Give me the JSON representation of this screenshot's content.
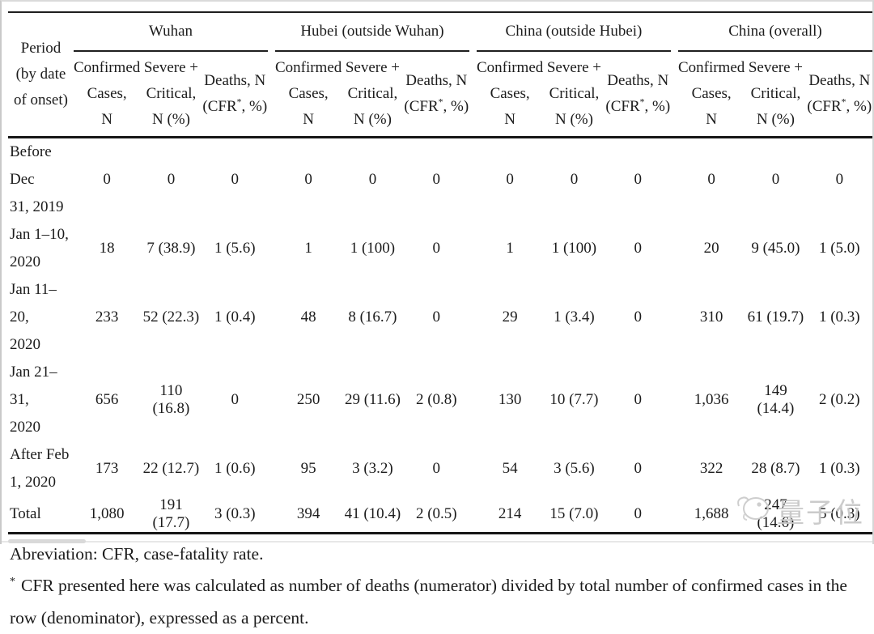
{
  "table": {
    "period_header_lines": [
      "Period",
      "(by date",
      "of onset)"
    ],
    "groups": [
      {
        "label": "Wuhan"
      },
      {
        "label": "Hubei (outside Wuhan)"
      },
      {
        "label": "China (outside Hubei)"
      },
      {
        "label": "China (overall)"
      }
    ],
    "subcolumns": [
      {
        "name": "confirmed-cases",
        "lines": [
          [
            {
              "t": "Confirmed"
            }
          ],
          [
            {
              "t": "Cases,"
            }
          ],
          [
            {
              "t": "N"
            }
          ]
        ]
      },
      {
        "name": "severe-critical",
        "lines": [
          [
            {
              "t": "Severe +"
            }
          ],
          [
            {
              "t": "Critical,"
            }
          ],
          [
            {
              "t": "N (%)"
            }
          ]
        ]
      },
      {
        "name": "deaths-cfr",
        "lines": [
          [
            {
              "t": "Deaths, N"
            }
          ],
          [
            {
              "t": "(CFR"
            },
            {
              "sup": "*"
            },
            {
              "t": ", %)"
            }
          ]
        ]
      }
    ],
    "rows": [
      {
        "period_lines": [
          "Before Dec",
          "31, 2019"
        ],
        "values": [
          "0",
          "0",
          "0",
          "0",
          "0",
          "0",
          "0",
          "0",
          "0",
          "0",
          "0",
          "0"
        ]
      },
      {
        "period_lines": [
          "Jan 1–10,",
          "2020"
        ],
        "values": [
          "18",
          "7 (38.9)",
          "1 (5.6)",
          "1",
          "1 (100)",
          "0",
          "1",
          "1 (100)",
          "0",
          "20",
          "9 (45.0)",
          "1 (5.0)"
        ]
      },
      {
        "period_lines": [
          "Jan 11–20,",
          "2020"
        ],
        "values": [
          "233",
          "52 (22.3)",
          "1 (0.4)",
          "48",
          "8 (16.7)",
          "0",
          "29",
          "1 (3.4)",
          "0",
          "310",
          "61 (19.7)",
          "1 (0.3)"
        ]
      },
      {
        "period_lines": [
          "Jan 21–31,",
          "2020"
        ],
        "values": [
          "656",
          "110 (16.8)",
          "0",
          "250",
          "29 (11.6)",
          "2 (0.8)",
          "130",
          "10 (7.7)",
          "0",
          "1,036",
          "149 (14.4)",
          "2 (0.2)"
        ]
      },
      {
        "period_lines": [
          "After Feb",
          "1, 2020"
        ],
        "values": [
          "173",
          "22 (12.7)",
          "1 (0.6)",
          "95",
          "3 (3.2)",
          "0",
          "54",
          "3 (5.6)",
          "0",
          "322",
          "28 (8.7)",
          "1 (0.3)"
        ]
      },
      {
        "period_lines": [
          "Total"
        ],
        "values": [
          "1,080",
          "191 (17.7)",
          "3 (0.3)",
          "394",
          "41 (10.4)",
          "2 (0.5)",
          "214",
          "15 (7.0)",
          "0",
          "1,688",
          "247 (14.6)",
          "5 (0.3)"
        ]
      }
    ]
  },
  "footnotes": {
    "abbreviation_line": "Abreviation: CFR, case-fatality rate.",
    "cfr_marker": "*",
    "cfr_text": "CFR presented here was calculated as number of deaths (numerator) divided by total number of confirmed cases in the row (denominator), expressed as a percent."
  },
  "watermark": {
    "icon": "qbitai-mascot-icon",
    "text": "量子位"
  },
  "colors": {
    "rule": "#161616",
    "text": "#1c1c1c",
    "watermark_gray": "#c9c9c9"
  }
}
